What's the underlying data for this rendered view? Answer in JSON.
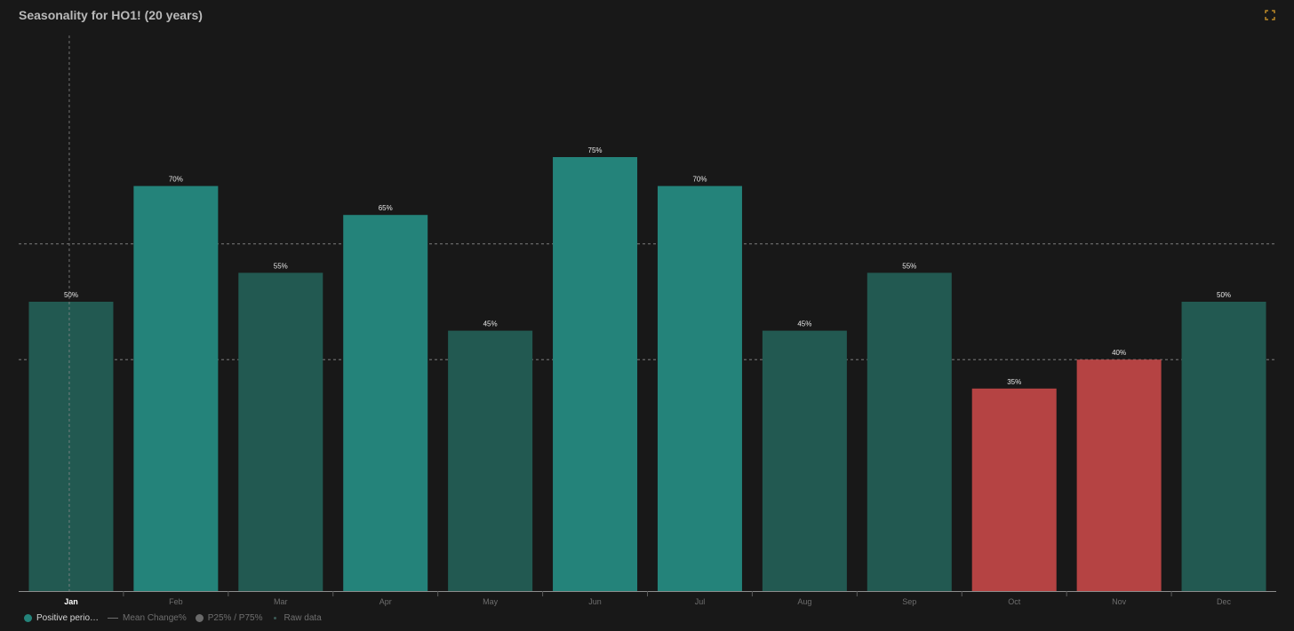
{
  "header": {
    "title": "Seasonality for HO1! (20 years)"
  },
  "icons": {
    "expand": "expand-icon"
  },
  "colors": {
    "background": "#181818",
    "bar_strong": "#24837a",
    "bar_weak": "#225951",
    "bar_negative": "#b54343",
    "grid": "#8a8a8a"
  },
  "legend": [
    {
      "label": "Positive perio…",
      "marker": "dot",
      "color": "#24837a",
      "active": true
    },
    {
      "label": "Mean Change%",
      "marker": "line",
      "color": "#6f6f6f",
      "active": false
    },
    {
      "label": "P25% / P75%",
      "marker": "dot",
      "color": "#6a6a6a",
      "active": false
    },
    {
      "label": "Raw data",
      "marker": "tiny-dot",
      "color": "#3c5a55",
      "active": false
    }
  ],
  "chart_data": {
    "type": "bar",
    "categories": [
      "Jan",
      "Feb",
      "Mar",
      "Apr",
      "May",
      "Jun",
      "Jul",
      "Aug",
      "Sep",
      "Oct",
      "Nov",
      "Dec"
    ],
    "series": [
      {
        "name": "Positive perio…",
        "values": [
          50,
          70,
          55,
          65,
          45,
          75,
          70,
          45,
          55,
          35,
          40,
          50
        ],
        "labels": [
          "50%",
          "70%",
          "55%",
          "65%",
          "45%",
          "75%",
          "70%",
          "45%",
          "55%",
          "35%",
          "40%",
          "50%"
        ],
        "colors": [
          "#225951",
          "#24837a",
          "#225951",
          "#24837a",
          "#225951",
          "#24837a",
          "#24837a",
          "#225951",
          "#225951",
          "#b54343",
          "#b54343",
          "#225951"
        ]
      }
    ],
    "ylim": [
      0,
      100
    ],
    "reference_lines": [
      40,
      60
    ],
    "highlighted_category": "Jan",
    "grid": false,
    "legend_position": "bottom-left"
  }
}
